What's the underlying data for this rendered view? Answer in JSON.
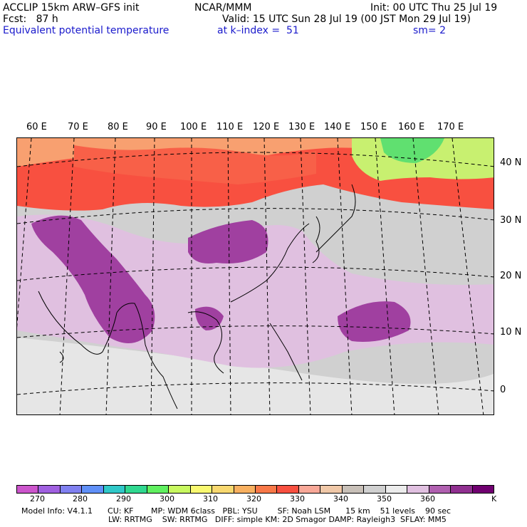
{
  "header": {
    "model": "ACCLIP 15km ARW–GFS init",
    "org": "NCAR/MMM",
    "init": "Init: 00 UTC Thu 25 Jul 19",
    "fcst": "Fcst:   87 h",
    "valid": "Valid: 15 UTC Sun 28 Jul 19 (00 JST Mon 29 Jul 19)",
    "field": "Equivalent potential temperature",
    "level": "at k–index =  51",
    "smooth": "sm= 2"
  },
  "map": {
    "lon_labels": [
      "60 E",
      "70 E",
      "80 E",
      "90 E",
      "100 E",
      "110 E",
      "120 E",
      "130 E",
      "140 E",
      "150 E",
      "160 E",
      "170 E"
    ],
    "lat_labels": [
      "40 N",
      "30 N",
      "20 N",
      "10 N",
      "0"
    ]
  },
  "colorbar": {
    "colors": [
      "#cc55cc",
      "#a060e0",
      "#8080f0",
      "#6090f8",
      "#30c8c8",
      "#30d890",
      "#60f060",
      "#c8f860",
      "#f8f870",
      "#f8d870",
      "#f8b060",
      "#f87848",
      "#f85040",
      "#f8a898",
      "#f0c8a8",
      "#c8c0b8",
      "#d0d0d0",
      "#ececec",
      "#e0c0e0",
      "#b060b0",
      "#903090",
      "#700070"
    ],
    "labels": [
      "270",
      "280",
      "290",
      "300",
      "310",
      "320",
      "330",
      "340",
      "350",
      "360",
      "K"
    ]
  },
  "footer": {
    "line1": "Model Info: V4.1.1      CU: KF       MP: WDM 6class   PBL: YSU        SF: Noah LSM      15 km    51 levels    90 sec",
    "line2": "LW: RRTMG    SW: RRTMG   DIFF: simple KM: 2D Smagor DAMP: Rayleigh3  SFLAY: MM5"
  }
}
